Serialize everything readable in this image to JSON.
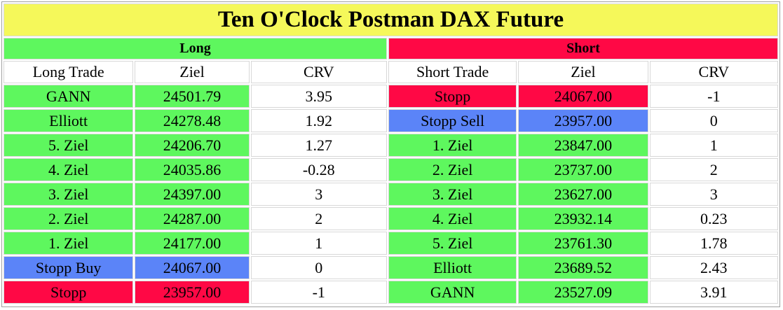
{
  "title": "Ten O'Clock Postman DAX Future",
  "long": {
    "label": "Long",
    "color": "#5ef75e",
    "columns": [
      "Long Trade",
      "Ziel",
      "CRV"
    ],
    "rows": [
      {
        "cells": [
          "GANN",
          "24501.79",
          "3.95"
        ],
        "color": "#5ef75e"
      },
      {
        "cells": [
          "Elliott",
          "24278.48",
          "1.92"
        ],
        "color": "#5ef75e"
      },
      {
        "cells": [
          "5. Ziel",
          "24206.70",
          "1.27"
        ],
        "color": "#5ef75e"
      },
      {
        "cells": [
          "4. Ziel",
          "24035.86",
          "-0.28"
        ],
        "color": "#5ef75e"
      },
      {
        "cells": [
          "3. Ziel",
          "24397.00",
          "3"
        ],
        "color": "#5ef75e"
      },
      {
        "cells": [
          "2. Ziel",
          "24287.00",
          "2"
        ],
        "color": "#5ef75e"
      },
      {
        "cells": [
          "1. Ziel",
          "24177.00",
          "1"
        ],
        "color": "#5ef75e"
      },
      {
        "cells": [
          "Stopp Buy",
          "24067.00",
          "0"
        ],
        "color": "#5b84f8"
      },
      {
        "cells": [
          "Stopp",
          "23957.00",
          "-1"
        ],
        "color": "#ff0845"
      }
    ]
  },
  "short": {
    "label": "Short",
    "color": "#ff0845",
    "columns": [
      "Short Trade",
      "Ziel",
      "CRV"
    ],
    "rows": [
      {
        "cells": [
          "Stopp",
          "24067.00",
          "-1"
        ],
        "color": "#ff0845"
      },
      {
        "cells": [
          "Stopp Sell",
          "23957.00",
          "0"
        ],
        "color": "#5b84f8"
      },
      {
        "cells": [
          "1. Ziel",
          "23847.00",
          "1"
        ],
        "color": "#5ef75e"
      },
      {
        "cells": [
          "2. Ziel",
          "23737.00",
          "2"
        ],
        "color": "#5ef75e"
      },
      {
        "cells": [
          "3. Ziel",
          "23627.00",
          "3"
        ],
        "color": "#5ef75e"
      },
      {
        "cells": [
          "4. Ziel",
          "23932.14",
          "0.23"
        ],
        "color": "#5ef75e"
      },
      {
        "cells": [
          "5. Ziel",
          "23761.30",
          "1.78"
        ],
        "color": "#5ef75e"
      },
      {
        "cells": [
          "Elliott",
          "23689.52",
          "2.43"
        ],
        "color": "#5ef75e"
      },
      {
        "cells": [
          "GANN",
          "23527.09",
          "3.91"
        ],
        "color": "#5ef75e"
      }
    ]
  }
}
